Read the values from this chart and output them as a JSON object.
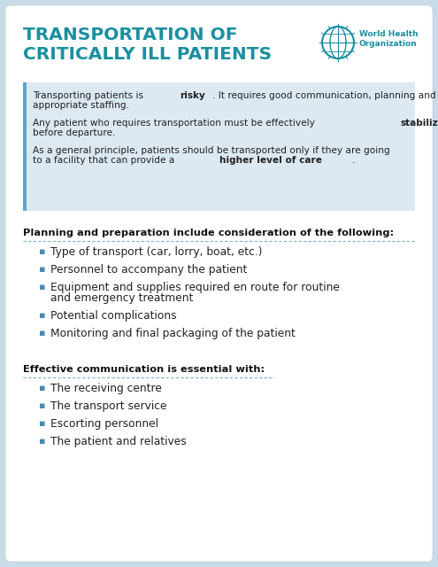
{
  "bg_color": "#c8dce8",
  "card_color": "#ffffff",
  "title_line1": "TRANSPORTATION OF",
  "title_line2": "CRITICALLY ILL PATIENTS",
  "title_color": "#1a8fa0",
  "who_text_line1": "World Health",
  "who_text_line2": "Organization",
  "who_color": "#1a8fa0",
  "info_box_color": "#dce8f2",
  "info_border_color": "#5ba4c8",
  "section1_heading": "Planning and preparation include consideration of the following:",
  "section1_bullets": [
    "Type of transport (car, lorry, boat, etc.)",
    "Personnel to accompany the patient",
    "Equipment and supplies required en route for routine\nand emergency treatment",
    "Potential complications",
    "Monitoring and final packaging of the patient"
  ],
  "section2_heading": "Effective communication is essential with:",
  "section2_bullets": [
    "The receiving centre",
    "The transport service",
    "Escorting personnel",
    "The patient and relatives"
  ],
  "bullet_color": "#4a8ab0",
  "heading_color": "#111111",
  "text_color": "#222222",
  "section_line_color": "#7ab0c8",
  "info_para1_normal": "Transporting patients is ",
  "info_para1_bold": "risky",
  "info_para1_rest": ". It requires good communication, planning and\nappropriate staffing.",
  "info_para2_normal": "Any patient who requires transportation must be effectively ",
  "info_para2_bold": "stabilized",
  "info_para2_rest": "\nbefore departure.",
  "info_para3_normal": "As a general principle, patients should be transported only if they are going\nto a facility that can provide a ",
  "info_para3_bold": "higher level of care",
  "info_para3_rest": "."
}
